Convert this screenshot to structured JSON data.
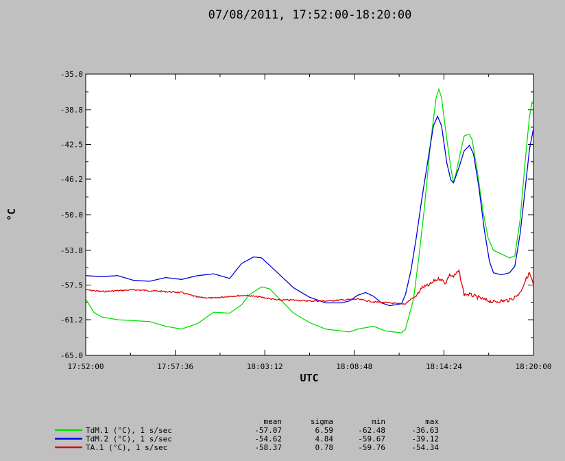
{
  "chart_data": {
    "type": "line",
    "title": "07/08/2011, 17:52:00-18:20:00",
    "xlabel": "UTC",
    "ylabel": "°C",
    "xlim": [
      "17:52:00",
      "18:20:00"
    ],
    "ylim": [
      -65.0,
      -35.0
    ],
    "x_tick_labels": [
      "17:52:00",
      "17:57:36",
      "18:03:12",
      "18:08:48",
      "18:14:24",
      "18:20:00"
    ],
    "y_tick_labels": [
      "-35.0",
      "-38.8",
      "-42.5",
      "-46.2",
      "-50.0",
      "-53.8",
      "-57.5",
      "-61.2",
      "-65.0"
    ],
    "grid": false,
    "legend_placement": "bottom-left",
    "stats_headers": [
      "mean",
      "sigma",
      "min",
      "max"
    ],
    "series": [
      {
        "name": "TdM.1 (°C), 1 s/sec",
        "color": "#00e000",
        "stats": [
          "-57.07",
          "6.59",
          "-62.48",
          "-36.63"
        ],
        "points": [
          [
            "17:52:00",
            -59.0
          ],
          [
            "17:52:30",
            -60.4
          ],
          [
            "17:53:00",
            -60.9
          ],
          [
            "17:54:00",
            -61.2
          ],
          [
            "17:55:00",
            -61.3
          ],
          [
            "17:56:00",
            -61.4
          ],
          [
            "17:57:00",
            -61.9
          ],
          [
            "17:58:00",
            -62.2
          ],
          [
            "17:59:00",
            -61.6
          ],
          [
            "18:00:00",
            -60.4
          ],
          [
            "18:01:00",
            -60.5
          ],
          [
            "18:01:45",
            -59.6
          ],
          [
            "18:02:15",
            -58.5
          ],
          [
            "18:03:00",
            -57.7
          ],
          [
            "18:03:30",
            -57.9
          ],
          [
            "18:04:15",
            -59.2
          ],
          [
            "18:05:00",
            -60.5
          ],
          [
            "18:06:00",
            -61.5
          ],
          [
            "18:07:00",
            -62.2
          ],
          [
            "18:08:00",
            -62.4
          ],
          [
            "18:08:30",
            -62.5
          ],
          [
            "18:09:00",
            -62.2
          ],
          [
            "18:10:00",
            -61.9
          ],
          [
            "18:10:45",
            -62.4
          ],
          [
            "18:11:45",
            -62.6
          ],
          [
            "18:12:00",
            -62.2
          ],
          [
            "18:12:30",
            -59.0
          ],
          [
            "18:12:50",
            -54.5
          ],
          [
            "18:13:10",
            -49.5
          ],
          [
            "18:13:35",
            -42.0
          ],
          [
            "18:13:55",
            -37.5
          ],
          [
            "18:14:05",
            -36.6
          ],
          [
            "18:14:15",
            -37.5
          ],
          [
            "18:14:35",
            -42.0
          ],
          [
            "18:14:50",
            -45.0
          ],
          [
            "18:15:00",
            -46.6
          ],
          [
            "18:15:10",
            -45.5
          ],
          [
            "18:15:25",
            -43.5
          ],
          [
            "18:15:40",
            -41.6
          ],
          [
            "18:16:00",
            -41.4
          ],
          [
            "18:16:10",
            -42.0
          ],
          [
            "18:16:30",
            -45.5
          ],
          [
            "18:16:50",
            -49.5
          ],
          [
            "18:17:10",
            -52.5
          ],
          [
            "18:17:30",
            -53.8
          ],
          [
            "18:18:00",
            -54.2
          ],
          [
            "18:18:30",
            -54.6
          ],
          [
            "18:18:50",
            -54.4
          ],
          [
            "18:19:10",
            -50.5
          ],
          [
            "18:19:30",
            -44.0
          ],
          [
            "18:19:45",
            -39.5
          ],
          [
            "18:19:55",
            -38.0
          ],
          [
            "18:20:05",
            -38.5
          ],
          [
            "18:20:20",
            -41.5
          ],
          [
            "18:20:30",
            -44.0
          ]
        ]
      },
      {
        "name": "TdM.2 (°C), 1 s/sec",
        "color": "#0000e0",
        "stats": [
          "-54.62",
          "4.84",
          "-59.67",
          "-39.12"
        ],
        "points": [
          [
            "17:52:00",
            -56.5
          ],
          [
            "17:53:00",
            -56.6
          ],
          [
            "17:54:00",
            -56.5
          ],
          [
            "17:55:00",
            -57.0
          ],
          [
            "17:56:00",
            -57.1
          ],
          [
            "17:57:00",
            -56.7
          ],
          [
            "17:58:00",
            -56.9
          ],
          [
            "17:59:00",
            -56.5
          ],
          [
            "18:00:00",
            -56.3
          ],
          [
            "18:01:00",
            -56.8
          ],
          [
            "18:01:45",
            -55.2
          ],
          [
            "18:02:30",
            -54.5
          ],
          [
            "18:03:00",
            -54.6
          ],
          [
            "18:04:00",
            -56.2
          ],
          [
            "18:05:00",
            -57.8
          ],
          [
            "18:06:00",
            -58.8
          ],
          [
            "18:07:00",
            -59.4
          ],
          [
            "18:08:00",
            -59.4
          ],
          [
            "18:08:30",
            -59.2
          ],
          [
            "18:09:00",
            -58.6
          ],
          [
            "18:09:30",
            -58.3
          ],
          [
            "18:10:00",
            -58.7
          ],
          [
            "18:10:30",
            -59.4
          ],
          [
            "18:11:00",
            -59.7
          ],
          [
            "18:11:45",
            -59.5
          ],
          [
            "18:12:00",
            -58.5
          ],
          [
            "18:12:20",
            -56.0
          ],
          [
            "18:12:40",
            -52.5
          ],
          [
            "18:13:00",
            -48.5
          ],
          [
            "18:13:25",
            -44.0
          ],
          [
            "18:13:45",
            -40.5
          ],
          [
            "18:14:00",
            -39.5
          ],
          [
            "18:14:15",
            -40.5
          ],
          [
            "18:14:35",
            -44.5
          ],
          [
            "18:14:50",
            -46.3
          ],
          [
            "18:15:00",
            -46.6
          ],
          [
            "18:15:20",
            -45.0
          ],
          [
            "18:15:40",
            -43.2
          ],
          [
            "18:16:00",
            -42.6
          ],
          [
            "18:16:15",
            -43.5
          ],
          [
            "18:16:35",
            -47.0
          ],
          [
            "18:16:55",
            -51.5
          ],
          [
            "18:17:15",
            -55.0
          ],
          [
            "18:17:30",
            -56.2
          ],
          [
            "18:18:00",
            -56.4
          ],
          [
            "18:18:30",
            -56.2
          ],
          [
            "18:18:50",
            -55.5
          ],
          [
            "18:19:10",
            -52.0
          ],
          [
            "18:19:30",
            -47.0
          ],
          [
            "18:19:45",
            -43.0
          ],
          [
            "18:20:00",
            -40.8
          ],
          [
            "18:20:15",
            -41.5
          ],
          [
            "18:20:30",
            -44.4
          ]
        ]
      },
      {
        "name": "TA.1 (°C), 1 s/sec",
        "color": "#e00000",
        "stats": [
          "-58.37",
          "0.78",
          "-59.76",
          "-54.34"
        ],
        "noisy": true,
        "points": [
          [
            "17:52:00",
            -58.0
          ],
          [
            "17:53:00",
            -58.2
          ],
          [
            "17:54:00",
            -58.1
          ],
          [
            "17:55:00",
            -58.0
          ],
          [
            "17:56:00",
            -58.1
          ],
          [
            "17:57:00",
            -58.2
          ],
          [
            "17:58:00",
            -58.3
          ],
          [
            "17:59:00",
            -58.8
          ],
          [
            "18:00:00",
            -58.9
          ],
          [
            "18:01:00",
            -58.7
          ],
          [
            "18:02:00",
            -58.6
          ],
          [
            "18:03:00",
            -58.8
          ],
          [
            "18:04:00",
            -59.1
          ],
          [
            "18:05:00",
            -59.1
          ],
          [
            "18:06:00",
            -59.2
          ],
          [
            "18:07:00",
            -59.2
          ],
          [
            "18:08:00",
            -59.1
          ],
          [
            "18:09:00",
            -59.0
          ],
          [
            "18:10:00",
            -59.3
          ],
          [
            "18:11:00",
            -59.4
          ],
          [
            "18:11:30",
            -59.5
          ],
          [
            "18:12:00",
            -59.5
          ],
          [
            "18:12:20",
            -59.0
          ],
          [
            "18:12:40",
            -58.7
          ],
          [
            "18:13:00",
            -57.8
          ],
          [
            "18:13:30",
            -57.5
          ],
          [
            "18:13:50",
            -57.0
          ],
          [
            "18:14:10",
            -56.8
          ],
          [
            "18:14:30",
            -57.3
          ],
          [
            "18:14:45",
            -56.4
          ],
          [
            "18:15:00",
            -56.6
          ],
          [
            "18:15:20",
            -56.0
          ],
          [
            "18:15:40",
            -58.5
          ],
          [
            "18:16:00",
            -58.5
          ],
          [
            "18:16:30",
            -58.8
          ],
          [
            "18:17:00",
            -59.1
          ],
          [
            "18:17:30",
            -59.3
          ],
          [
            "18:18:00",
            -59.2
          ],
          [
            "18:18:30",
            -59.1
          ],
          [
            "18:18:50",
            -58.8
          ],
          [
            "18:19:10",
            -58.3
          ],
          [
            "18:19:30",
            -57.0
          ],
          [
            "18:19:45",
            -56.2
          ],
          [
            "18:20:00",
            -57.5
          ],
          [
            "18:20:30",
            -57.8
          ]
        ]
      }
    ]
  }
}
